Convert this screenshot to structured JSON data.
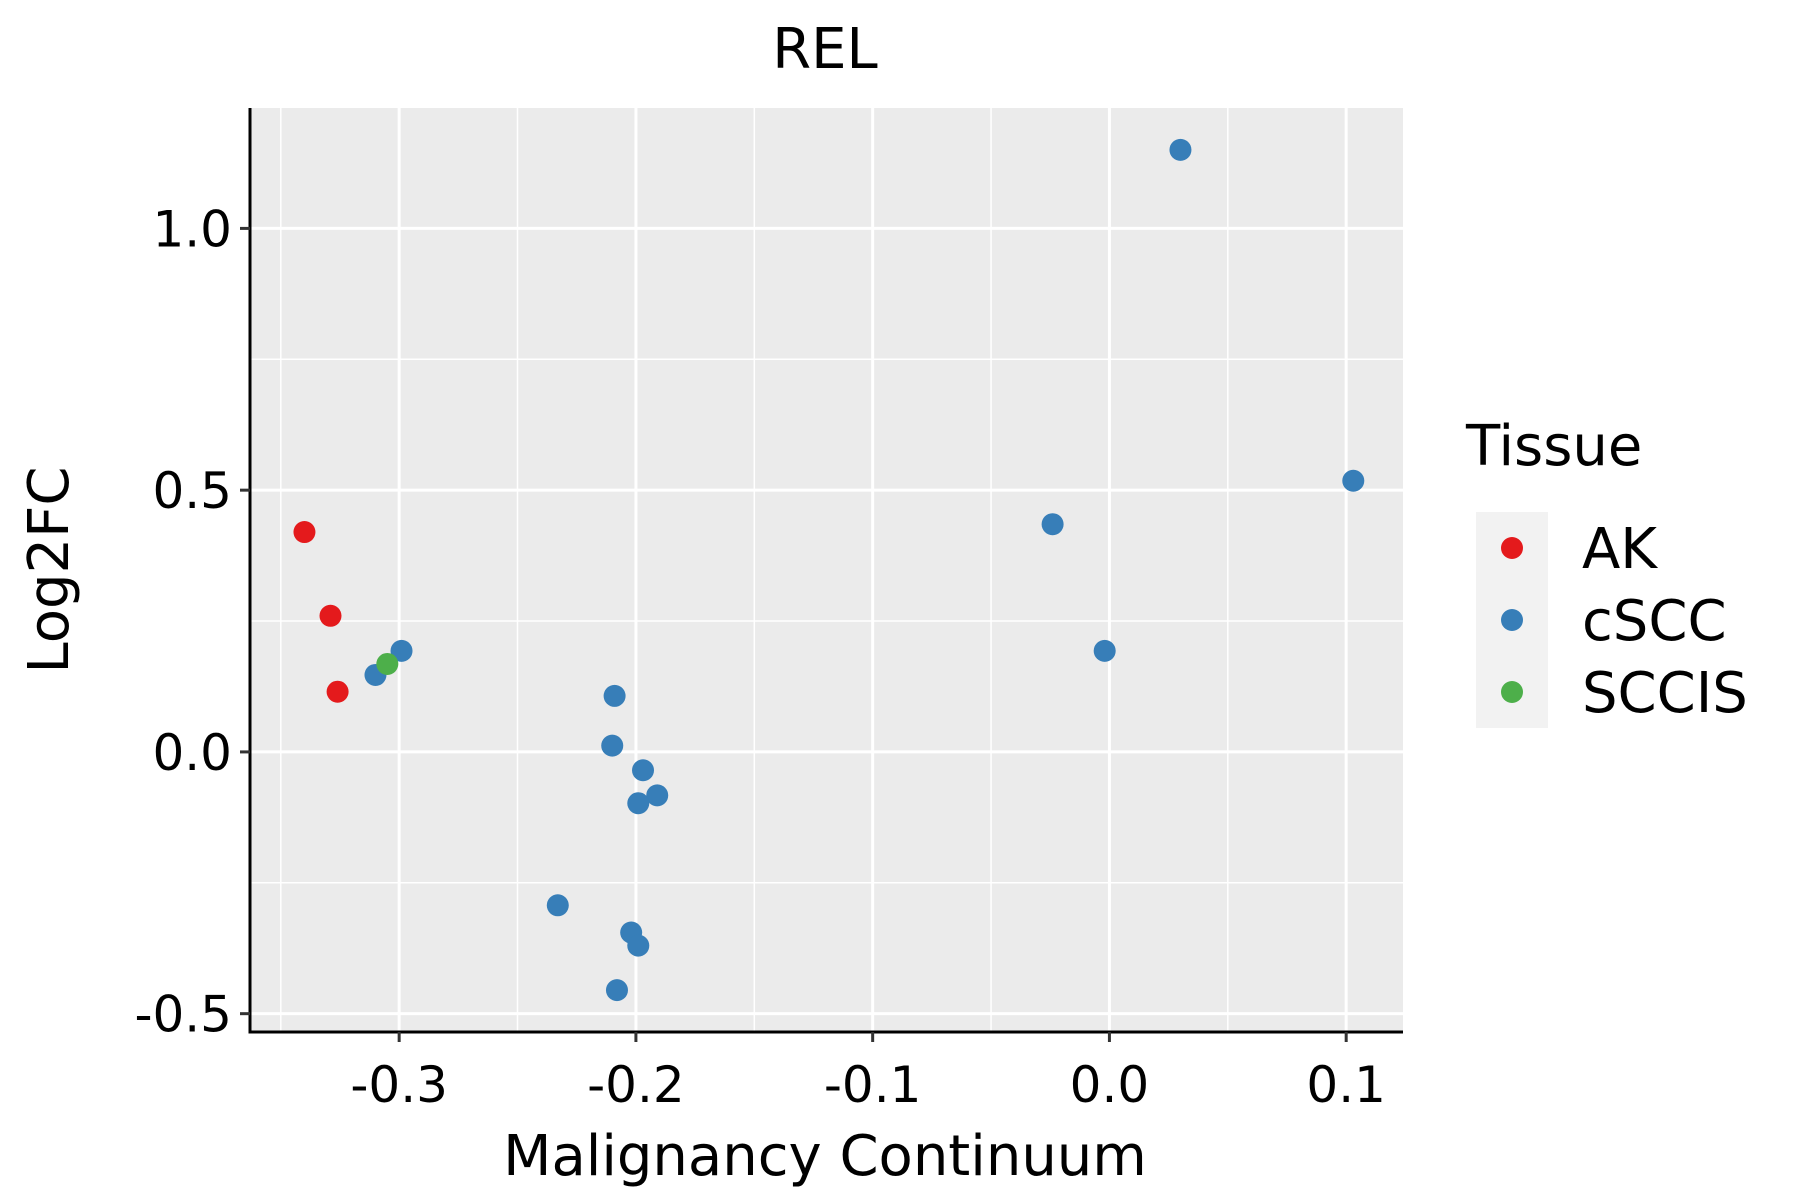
{
  "chart_data": {
    "type": "scatter",
    "title": "REL",
    "xlabel": "Malignancy Continuum",
    "ylabel": "Log2FC",
    "xlim": [
      -0.363,
      0.124
    ],
    "ylim": [
      -0.535,
      1.23
    ],
    "x_ticks": [
      -0.3,
      -0.2,
      -0.1,
      0.0,
      0.1
    ],
    "x_tick_labels": [
      "-0.3",
      "-0.2",
      "-0.1",
      "0.0",
      "0.1"
    ],
    "y_ticks": [
      -0.5,
      0.0,
      0.5,
      1.0
    ],
    "y_tick_labels": [
      "-0.5",
      "0.0",
      "0.5",
      "1.0"
    ],
    "grid": true,
    "legend": {
      "title": "Tissue",
      "position": "right"
    },
    "series": [
      {
        "name": "AK",
        "color": "#E41A1C",
        "points": [
          {
            "x": -0.34,
            "y": 0.42
          },
          {
            "x": -0.329,
            "y": 0.26
          },
          {
            "x": -0.326,
            "y": 0.115
          }
        ]
      },
      {
        "name": "cSCC",
        "color": "#377EB8",
        "points": [
          {
            "x": 0.03,
            "y": 1.15
          },
          {
            "x": 0.103,
            "y": 0.518
          },
          {
            "x": -0.024,
            "y": 0.435
          },
          {
            "x": -0.002,
            "y": 0.193
          },
          {
            "x": -0.299,
            "y": 0.193
          },
          {
            "x": -0.31,
            "y": 0.147
          },
          {
            "x": -0.209,
            "y": 0.107
          },
          {
            "x": -0.21,
            "y": 0.012
          },
          {
            "x": -0.197,
            "y": -0.035
          },
          {
            "x": -0.191,
            "y": -0.083
          },
          {
            "x": -0.199,
            "y": -0.098
          },
          {
            "x": -0.233,
            "y": -0.293
          },
          {
            "x": -0.202,
            "y": -0.345
          },
          {
            "x": -0.199,
            "y": -0.37
          },
          {
            "x": -0.208,
            "y": -0.455
          }
        ]
      },
      {
        "name": "SCCIS",
        "color": "#4DAF4A",
        "points": [
          {
            "x": -0.305,
            "y": 0.168
          }
        ]
      }
    ]
  }
}
